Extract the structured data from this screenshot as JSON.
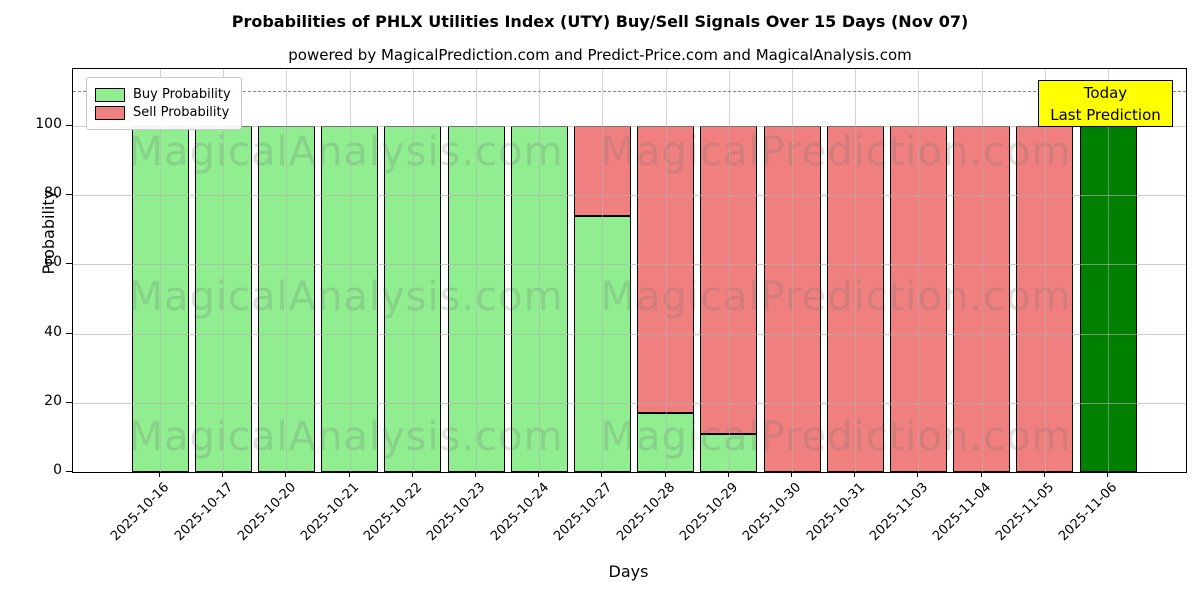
{
  "title": "Probabilities of PHLX Utilities Index (UTY) Buy/Sell Signals Over 15 Days (Nov 07)",
  "subtitle": "powered by MagicalPrediction.com and Predict-Price.com and MagicalAnalysis.com",
  "legend": [
    {
      "label": "Buy Probability",
      "color": "#90EE90"
    },
    {
      "label": "Sell Probability",
      "color": "#F08080"
    }
  ],
  "annotation_box": {
    "lines": [
      "Today",
      "Last Prediction"
    ],
    "bg": "#FFFF00",
    "line1": "Today",
    "line2": "Last Prediction"
  },
  "watermarks": [
    "MagicalAnalysis.com",
    "MagicalPrediction.com"
  ],
  "chart_data": {
    "type": "bar",
    "stacked": true,
    "title": "Probabilities of PHLX Utilities Index (UTY) Buy/Sell Signals Over 15 Days (Nov 07)",
    "xlabel": "Days",
    "ylabel": "Probability",
    "categories": [
      "2025-10-16",
      "2025-10-17",
      "2025-10-20",
      "2025-10-21",
      "2025-10-22",
      "2025-10-23",
      "2025-10-24",
      "2025-10-27",
      "2025-10-28",
      "2025-10-29",
      "2025-10-30",
      "2025-10-31",
      "2025-11-03",
      "2025-11-04",
      "2025-11-05",
      "2025-11-06"
    ],
    "series": [
      {
        "name": "Buy Probability",
        "color": "#90EE90",
        "values": [
          100,
          100,
          100,
          100,
          100,
          100,
          100,
          74,
          17,
          11,
          0,
          0,
          0,
          0,
          0,
          100
        ]
      },
      {
        "name": "Sell Probability",
        "color": "#F08080",
        "values": [
          0,
          0,
          0,
          0,
          0,
          0,
          0,
          26,
          83,
          89,
          100,
          100,
          100,
          100,
          100,
          0
        ]
      }
    ],
    "yticks": [
      0,
      20,
      40,
      60,
      80,
      100
    ],
    "ylim": [
      0,
      116.5
    ],
    "dashed_line_y": 110,
    "grid": true,
    "legend_position": "upper left",
    "today_index": 15,
    "today_color": "#008000",
    "bar_edge_color": "#000000"
  }
}
